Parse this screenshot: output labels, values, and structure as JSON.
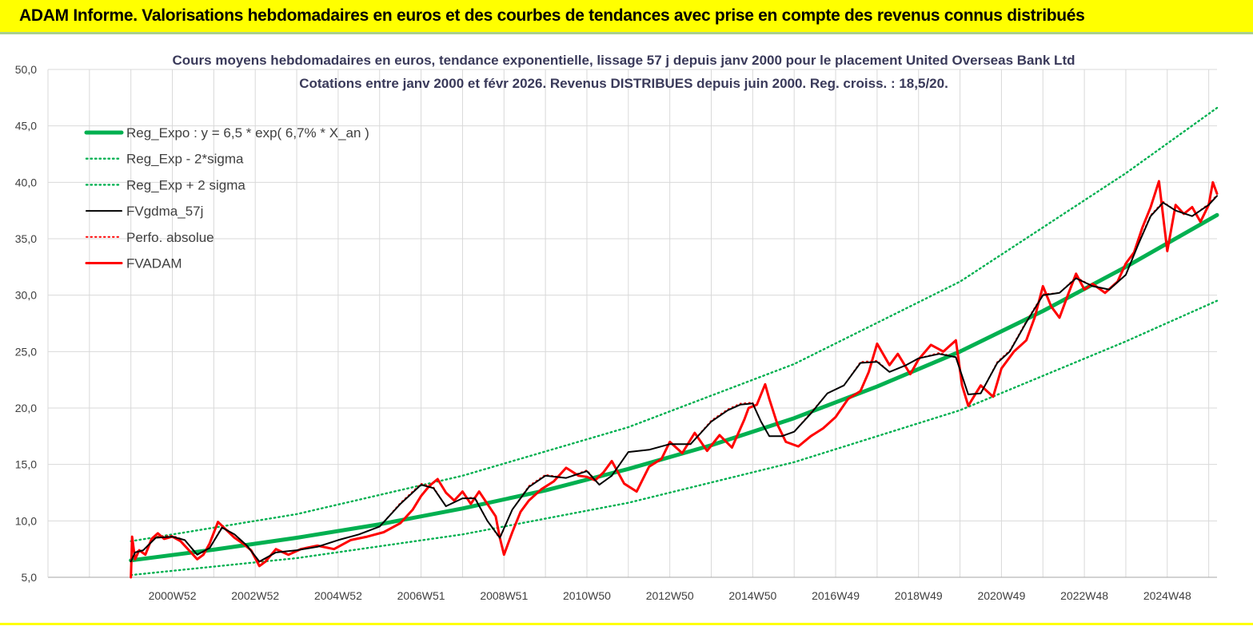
{
  "banner": {
    "title": "ADAM Informe. Valorisations hebdomadaires en euros et des courbes de tendances avec prise en compte des revenus connus distribués"
  },
  "colors": {
    "banner": "#ffff00",
    "reg": "#00b050",
    "fv": "#000000",
    "adam": "#ff0000",
    "grid": "#d9d9d9"
  },
  "chart_data": {
    "type": "line",
    "title": "Cours moyens hebdomadaires en euros, tendance exponentielle, lissage 57 j depuis janv 2000 pour le placement United Overseas Bank Ltd",
    "subtitle": "Cotations entre janv 2000 et févr 2026. Revenus DISTRIBUES depuis juin 2000. Reg. croiss. : 18,5/20.",
    "ylim": [
      5,
      50
    ],
    "yticks": [
      "5,0",
      "10,0",
      "15,0",
      "20,0",
      "25,0",
      "30,0",
      "35,0",
      "40,0",
      "45,0",
      "50,0"
    ],
    "xlim": [
      1998,
      2026.2
    ],
    "xticks": [
      {
        "x": 2001,
        "label": "2000W52"
      },
      {
        "x": 2003,
        "label": "2002W52"
      },
      {
        "x": 2005,
        "label": "2004W52"
      },
      {
        "x": 2007,
        "label": "2006W51"
      },
      {
        "x": 2009,
        "label": "2008W51"
      },
      {
        "x": 2011,
        "label": "2010W50"
      },
      {
        "x": 2013,
        "label": "2012W50"
      },
      {
        "x": 2015,
        "label": "2014W50"
      },
      {
        "x": 2017,
        "label": "2016W49"
      },
      {
        "x": 2019,
        "label": "2018W49"
      },
      {
        "x": 2021,
        "label": "2020W49"
      },
      {
        "x": 2023,
        "label": "2022W48"
      },
      {
        "x": 2025,
        "label": "2024W48"
      }
    ],
    "legend_placement": "top-left",
    "series": [
      {
        "name": "Reg_Expo : y = 6,5 * exp( 6,7% *  X_an )",
        "style": "thick",
        "color": "#00b050",
        "x": [
          2000,
          2002,
          2004,
          2006,
          2008,
          2010,
          2012,
          2014,
          2016,
          2018,
          2020,
          2022,
          2024,
          2026.2
        ],
        "values": [
          6.5,
          7.45,
          8.5,
          9.7,
          11.1,
          12.7,
          14.6,
          16.7,
          19.1,
          21.9,
          25.0,
          28.6,
          32.5,
          37.1
        ]
      },
      {
        "name": "Reg_Exp - 2*sigma",
        "style": "dotted",
        "color": "#00b050",
        "x": [
          2000,
          2004,
          2008,
          2012,
          2016,
          2020,
          2024,
          2026.2
        ],
        "values": [
          5.2,
          6.7,
          8.8,
          11.6,
          15.2,
          19.8,
          25.9,
          29.5
        ]
      },
      {
        "name": "Reg_Exp + 2 sigma",
        "style": "dotted",
        "color": "#00b050",
        "x": [
          2000,
          2004,
          2008,
          2012,
          2016,
          2020,
          2024,
          2026.2
        ],
        "values": [
          8.2,
          10.6,
          14.0,
          18.3,
          23.9,
          31.2,
          40.8,
          46.6
        ]
      },
      {
        "name": "FVgdma_57j",
        "style": "solid",
        "color": "#000000",
        "x": [
          2000,
          2000.1,
          2000.3,
          2000.6,
          2001.0,
          2001.3,
          2001.6,
          2001.9,
          2002.2,
          2002.5,
          2002.8,
          2003.1,
          2003.5,
          2004,
          2004.5,
          2005,
          2005.5,
          2006,
          2006.5,
          2007,
          2007.3,
          2007.6,
          2008,
          2008.3,
          2008.6,
          2008.9,
          2009.2,
          2009.6,
          2010,
          2010.5,
          2011,
          2011.3,
          2011.6,
          2012,
          2012.5,
          2013,
          2013.5,
          2014,
          2014.4,
          2014.7,
          2015.0,
          2015.2,
          2015.4,
          2015.7,
          2016,
          2016.4,
          2016.8,
          2017.2,
          2017.6,
          2018,
          2018.3,
          2018.7,
          2019,
          2019.5,
          2019.9,
          2020.2,
          2020.5,
          2020.9,
          2021.2,
          2021.6,
          2022,
          2022.4,
          2022.8,
          2023.2,
          2023.6,
          2024,
          2024.3,
          2024.6,
          2024.9,
          2025.2,
          2025.6,
          2026.0,
          2026.2
        ],
        "values": [
          6.4,
          7.2,
          7.4,
          8.5,
          8.6,
          8.3,
          7.0,
          7.6,
          9.4,
          8.8,
          7.8,
          6.4,
          7.2,
          7.4,
          7.7,
          8.3,
          8.8,
          9.5,
          11.5,
          13.2,
          12.9,
          11.3,
          12.0,
          12.0,
          10.0,
          8.5,
          11.0,
          13.0,
          14.0,
          13.8,
          14.4,
          13.2,
          14.0,
          16.1,
          16.3,
          16.8,
          16.8,
          18.8,
          19.8,
          20.3,
          20.4,
          18.8,
          17.5,
          17.5,
          17.9,
          19.5,
          21.3,
          22.0,
          24.0,
          24.1,
          23.2,
          23.8,
          24.4,
          24.8,
          24.5,
          21.2,
          21.3,
          24.0,
          25.0,
          27.6,
          30.0,
          30.2,
          31.5,
          30.8,
          30.5,
          31.8,
          34.5,
          37.0,
          38.2,
          37.5,
          37.0,
          38.0,
          38.8
        ]
      },
      {
        "name": "Perfo. absolue",
        "style": "dotted",
        "color": "#ff0000",
        "x": [
          2000,
          2000.1,
          2000.3,
          2000.6,
          2001.0,
          2001.3,
          2001.6,
          2001.9,
          2002.2,
          2002.5,
          2002.8,
          2003.1,
          2003.5,
          2004,
          2004.5,
          2005,
          2005.5,
          2006,
          2006.5,
          2007,
          2007.3,
          2007.6,
          2008,
          2008.3,
          2008.6,
          2008.9,
          2009.2,
          2009.6,
          2010,
          2010.5,
          2011,
          2011.3,
          2011.6,
          2012,
          2012.5,
          2013,
          2013.5,
          2014,
          2014.4,
          2014.7,
          2015.0,
          2015.2,
          2015.4,
          2015.7,
          2016,
          2016.4,
          2016.8,
          2017.2,
          2017.6,
          2018,
          2018.3,
          2018.7,
          2019,
          2019.5,
          2019.9,
          2020.2,
          2020.5,
          2020.9,
          2021.2,
          2021.6,
          2022,
          2022.4,
          2022.8,
          2023.2,
          2023.6,
          2024,
          2024.3,
          2024.6,
          2024.9,
          2025.2,
          2025.6,
          2026.0,
          2026.2
        ],
        "values": [
          6.4,
          7.3,
          7.4,
          8.6,
          8.7,
          8.3,
          7.0,
          7.6,
          9.5,
          8.8,
          7.8,
          6.3,
          7.2,
          7.4,
          7.7,
          8.3,
          8.8,
          9.5,
          11.6,
          13.3,
          13.0,
          11.3,
          12.0,
          12.1,
          10.0,
          8.4,
          11.0,
          13.1,
          14.1,
          13.8,
          14.5,
          13.2,
          14.0,
          16.1,
          16.3,
          16.8,
          16.8,
          18.9,
          19.9,
          20.4,
          20.5,
          18.8,
          17.5,
          17.5,
          17.9,
          19.6,
          21.3,
          22.0,
          24.1,
          24.2,
          23.2,
          23.8,
          24.4,
          24.9,
          24.5,
          21.2,
          21.3,
          24.1,
          25.1,
          27.7,
          30.1,
          30.2,
          31.6,
          30.8,
          30.5,
          31.8,
          34.6,
          37.1,
          38.3,
          37.5,
          37.0,
          38.1,
          38.9
        ]
      },
      {
        "name": "FVADAM",
        "style": "solid",
        "color": "#ff0000",
        "x": [
          2000,
          2000.03,
          2000.1,
          2000.2,
          2000.35,
          2000.5,
          2000.65,
          2000.8,
          2001.0,
          2001.2,
          2001.4,
          2001.6,
          2001.75,
          2001.9,
          2002.1,
          2002.3,
          2002.5,
          2002.7,
          2002.9,
          2003.1,
          2003.25,
          2003.5,
          2003.8,
          2004.1,
          2004.5,
          2004.9,
          2005.3,
          2005.7,
          2006.1,
          2006.5,
          2006.8,
          2007.0,
          2007.2,
          2007.4,
          2007.6,
          2007.8,
          2008.0,
          2008.2,
          2008.4,
          2008.6,
          2008.8,
          2008.9,
          2009.0,
          2009.2,
          2009.4,
          2009.6,
          2009.9,
          2010.2,
          2010.5,
          2010.8,
          2011.0,
          2011.2,
          2011.4,
          2011.6,
          2011.9,
          2012.2,
          2012.5,
          2012.8,
          2013.0,
          2013.3,
          2013.6,
          2013.9,
          2014.2,
          2014.5,
          2014.8,
          2014.9,
          2015.1,
          2015.3,
          2015.4,
          2015.6,
          2015.8,
          2016.1,
          2016.4,
          2016.7,
          2017.0,
          2017.3,
          2017.6,
          2017.8,
          2018.0,
          2018.3,
          2018.5,
          2018.8,
          2019.0,
          2019.3,
          2019.6,
          2019.9,
          2020.05,
          2020.2,
          2020.5,
          2020.8,
          2021.0,
          2021.3,
          2021.6,
          2021.8,
          2022.0,
          2022.2,
          2022.4,
          2022.6,
          2022.8,
          2023.0,
          2023.2,
          2023.5,
          2023.8,
          2024.0,
          2024.2,
          2024.4,
          2024.6,
          2024.8,
          2024.9,
          2025.0,
          2025.2,
          2025.4,
          2025.6,
          2025.8,
          2026.0,
          2026.1,
          2026.2
        ],
        "values": [
          5.0,
          8.6,
          6.6,
          7.4,
          7.0,
          8.4,
          8.9,
          8.4,
          8.6,
          8.2,
          7.4,
          6.6,
          7.0,
          8.0,
          9.9,
          9.2,
          8.5,
          8.0,
          7.4,
          6.0,
          6.4,
          7.5,
          7.0,
          7.5,
          7.8,
          7.5,
          8.3,
          8.6,
          9.0,
          9.8,
          11.0,
          12.2,
          13.1,
          13.7,
          12.5,
          11.8,
          12.6,
          11.5,
          12.6,
          11.5,
          10.4,
          8.5,
          7.0,
          9.0,
          10.8,
          11.8,
          12.8,
          13.5,
          14.7,
          14.0,
          13.9,
          13.6,
          14.3,
          15.3,
          13.3,
          12.6,
          14.8,
          15.5,
          17.0,
          16.0,
          17.8,
          16.2,
          17.6,
          16.5,
          19.0,
          20.0,
          20.3,
          22.1,
          20.8,
          18.5,
          17.0,
          16.6,
          17.5,
          18.2,
          19.2,
          20.8,
          21.5,
          23.2,
          25.7,
          23.8,
          24.8,
          23.0,
          24.3,
          25.6,
          25.0,
          26.0,
          22.0,
          20.2,
          22.0,
          21.0,
          23.5,
          25.0,
          26.0,
          28.0,
          30.8,
          29.0,
          28.0,
          30.0,
          31.9,
          30.5,
          31.0,
          30.2,
          31.2,
          32.8,
          33.8,
          36.0,
          37.8,
          40.1,
          37.0,
          33.9,
          38.0,
          37.2,
          37.8,
          36.5,
          38.0,
          40.0,
          39.0
        ]
      }
    ]
  }
}
